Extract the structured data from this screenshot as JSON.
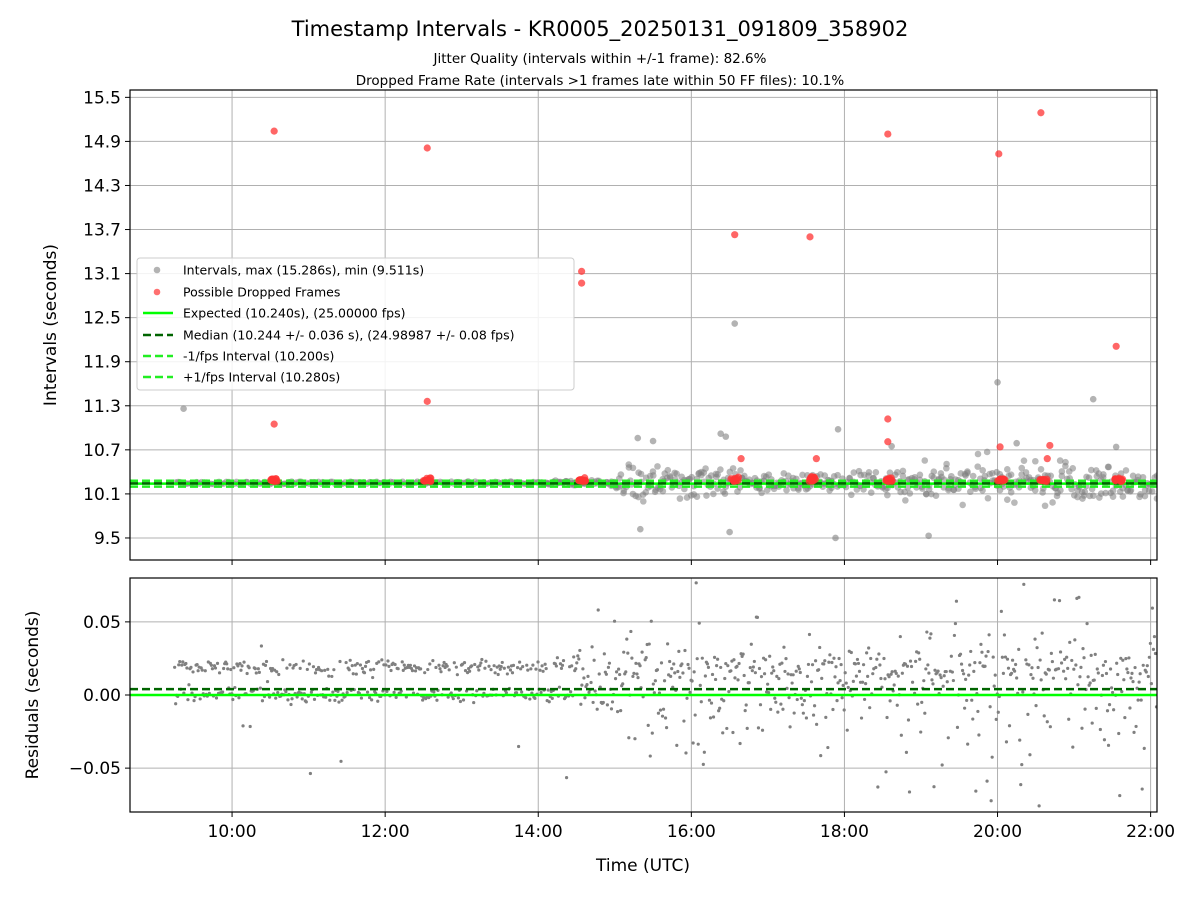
{
  "title": "Timestamp Intervals - KR0005_20250131_091809_358902",
  "subtitle_1": "Jitter Quality (intervals within +/-1 frame): 82.6%",
  "subtitle_2": "Dropped Frame Rate (intervals >1 frames late within 50 FF files): 10.1%",
  "colors": {
    "intervals": "#808080",
    "dropped": "#ff3333",
    "expected": "#00ff00",
    "median": "#006400",
    "fps_band": "#22ee22",
    "grid": "#b0b0b0"
  },
  "chart_data": [
    {
      "type": "scatter",
      "ylabel": "Intervals (seconds)",
      "xlim": [
        "08:40",
        "22:05"
      ],
      "ylim": [
        9.2,
        15.6
      ],
      "yticks": [
        "9.5",
        "10.1",
        "10.7",
        "11.3",
        "11.9",
        "12.5",
        "13.1",
        "13.7",
        "14.3",
        "14.9",
        "15.5"
      ],
      "grid": true,
      "legend_placement": "center-left",
      "legend": {
        "intervals": "Intervals, max (15.286s), min (9.511s)",
        "dropped": "Possible Dropped Frames",
        "expected": "Expected (10.240s), (25.00000 fps)",
        "median": "Median (10.244 +/- 0.036 s), (24.98987 +/- 0.08 fps)",
        "minus": "-1/fps Interval (10.200s)",
        "plus": "+1/fps Interval (10.280s)"
      },
      "lines": {
        "expected": 10.24,
        "median": 10.244,
        "minus": 10.2,
        "plus": 10.28
      },
      "interval_stats": {
        "max": 15.286,
        "min": 9.511
      },
      "dropped_outliers": [
        {
          "x": "10:33",
          "y": 15.04
        },
        {
          "x": "10:33",
          "y": 11.05
        },
        {
          "x": "12:33",
          "y": 14.81
        },
        {
          "x": "12:33",
          "y": 11.36
        },
        {
          "x": "14:34",
          "y": 13.13
        },
        {
          "x": "14:34",
          "y": 12.97
        },
        {
          "x": "16:34",
          "y": 13.63
        },
        {
          "x": "16:39",
          "y": 10.58
        },
        {
          "x": "17:33",
          "y": 13.6
        },
        {
          "x": "17:38",
          "y": 10.58
        },
        {
          "x": "18:34",
          "y": 15.0
        },
        {
          "x": "18:34",
          "y": 11.12
        },
        {
          "x": "18:34",
          "y": 10.81
        },
        {
          "x": "20:01",
          "y": 14.73
        },
        {
          "x": "20:02",
          "y": 10.74
        },
        {
          "x": "20:34",
          "y": 15.29
        },
        {
          "x": "20:39",
          "y": 10.58
        },
        {
          "x": "20:41",
          "y": 10.76
        },
        {
          "x": "21:33",
          "y": 12.11
        }
      ],
      "gray_outliers": [
        {
          "x": "09:22",
          "y": 11.26
        },
        {
          "x": "16:34",
          "y": 12.42
        },
        {
          "x": "20:00",
          "y": 11.62
        },
        {
          "x": "21:15",
          "y": 11.39
        },
        {
          "x": "17:55",
          "y": 10.98
        },
        {
          "x": "15:18",
          "y": 10.86
        },
        {
          "x": "15:30",
          "y": 10.82
        },
        {
          "x": "16:23",
          "y": 10.92
        },
        {
          "x": "16:27",
          "y": 10.88
        },
        {
          "x": "17:53",
          "y": 9.5
        },
        {
          "x": "19:06",
          "y": 9.53
        },
        {
          "x": "16:30",
          "y": 9.58
        },
        {
          "x": "15:20",
          "y": 9.62
        },
        {
          "x": "21:33",
          "y": 10.74
        },
        {
          "x": "18:37",
          "y": 10.75
        },
        {
          "x": "20:15",
          "y": 10.79
        }
      ]
    },
    {
      "type": "scatter",
      "xlabel": "Time (UTC)",
      "ylabel": "Residuals (seconds)",
      "xlim": [
        "08:40",
        "22:05"
      ],
      "ylim": [
        -0.08,
        0.08
      ],
      "yticks": [
        "0.05",
        "0.00",
        "−0.05"
      ],
      "xticks": [
        "10:00",
        "12:00",
        "14:00",
        "16:00",
        "18:00",
        "20:00",
        "22:00"
      ],
      "grid": true,
      "lines": {
        "expected": 0.0,
        "median": 0.004
      }
    }
  ]
}
